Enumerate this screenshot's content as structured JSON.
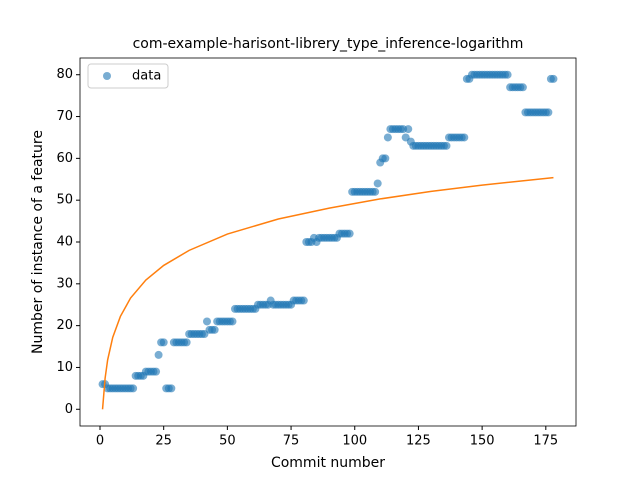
{
  "chart_data": {
    "type": "scatter",
    "title": "com-example-harisont-librery_type_inference-logarithm",
    "xlabel": "Commit number",
    "ylabel": "Number of instance of a feature",
    "xlim": [
      -7.85,
      186.85
    ],
    "ylim": [
      -4,
      84
    ],
    "xticks": [
      0,
      25,
      50,
      75,
      100,
      125,
      150,
      175
    ],
    "yticks": [
      0,
      10,
      20,
      30,
      40,
      50,
      60,
      70,
      80
    ],
    "legend": "upper left",
    "series": [
      {
        "name": "data",
        "type": "scatter",
        "color": "#1f77b4",
        "x": [
          1,
          2,
          3,
          4,
          5,
          6,
          7,
          8,
          9,
          10,
          11,
          12,
          13,
          14,
          15,
          16,
          17,
          18,
          19,
          20,
          21,
          22,
          23,
          24,
          25,
          26,
          27,
          28,
          29,
          30,
          31,
          32,
          33,
          34,
          35,
          36,
          37,
          38,
          39,
          40,
          41,
          42,
          43,
          44,
          45,
          46,
          47,
          48,
          49,
          50,
          51,
          52,
          53,
          54,
          55,
          56,
          57,
          58,
          59,
          60,
          61,
          62,
          63,
          64,
          65,
          66,
          67,
          68,
          69,
          70,
          71,
          72,
          73,
          74,
          75,
          76,
          77,
          78,
          79,
          80,
          81,
          82,
          83,
          84,
          85,
          86,
          87,
          88,
          89,
          90,
          91,
          92,
          93,
          94,
          95,
          96,
          97,
          98,
          99,
          100,
          101,
          102,
          103,
          104,
          105,
          106,
          107,
          108,
          109,
          110,
          111,
          112,
          113,
          114,
          115,
          116,
          117,
          118,
          119,
          120,
          121,
          122,
          123,
          124,
          125,
          126,
          127,
          128,
          129,
          130,
          131,
          132,
          133,
          134,
          135,
          136,
          137,
          138,
          139,
          140,
          141,
          142,
          143,
          144,
          145,
          146,
          147,
          148,
          149,
          150,
          151,
          152,
          153,
          154,
          155,
          156,
          157,
          158,
          159,
          160,
          161,
          162,
          163,
          164,
          165,
          166,
          167,
          168,
          169,
          170,
          171,
          172,
          173,
          174,
          175,
          176,
          177,
          178
        ],
        "values": [
          6,
          6,
          5,
          5,
          5,
          5,
          5,
          5,
          5,
          5,
          5,
          5,
          5,
          8,
          8,
          8,
          8,
          9,
          9,
          9,
          9,
          9,
          13,
          16,
          16,
          5,
          5,
          5,
          16,
          16,
          16,
          16,
          16,
          16,
          18,
          18,
          18,
          18,
          18,
          18,
          18,
          21,
          19,
          19,
          19,
          21,
          21,
          21,
          21,
          21,
          21,
          21,
          24,
          24,
          24,
          24,
          24,
          24,
          24,
          24,
          24,
          25,
          25,
          25,
          25,
          25,
          26,
          25,
          25,
          25,
          25,
          25,
          25,
          25,
          25,
          26,
          26,
          26,
          26,
          26,
          40,
          40,
          40,
          41,
          40,
          41,
          41,
          41,
          41,
          41,
          41,
          41,
          41,
          42,
          42,
          42,
          42,
          42,
          52,
          52,
          52,
          52,
          52,
          52,
          52,
          52,
          52,
          52,
          54,
          59,
          60,
          60,
          65,
          67,
          67,
          67,
          67,
          67,
          67,
          65,
          67,
          64,
          63,
          63,
          63,
          63,
          63,
          63,
          63,
          63,
          63,
          63,
          63,
          63,
          63,
          63,
          65,
          65,
          65,
          65,
          65,
          65,
          65,
          79,
          79,
          80,
          80,
          80,
          80,
          80,
          80,
          80,
          80,
          80,
          80,
          80,
          80,
          80,
          80,
          80,
          77,
          77,
          77,
          77,
          77,
          77,
          71,
          71,
          71,
          71,
          71,
          71,
          71,
          71,
          71,
          71,
          79,
          79
        ]
      },
      {
        "type": "line",
        "color": "#ff7f0e",
        "x": [
          1,
          2,
          3,
          5,
          8,
          12,
          18,
          25,
          35,
          50,
          70,
          90,
          110,
          130,
          150,
          178
        ],
        "values": [
          0,
          7.4,
          11.8,
          17.2,
          22.2,
          26.6,
          30.9,
          34.4,
          38.0,
          41.9,
          45.5,
          48.1,
          50.3,
          52.1,
          53.6,
          55.4
        ]
      }
    ]
  }
}
